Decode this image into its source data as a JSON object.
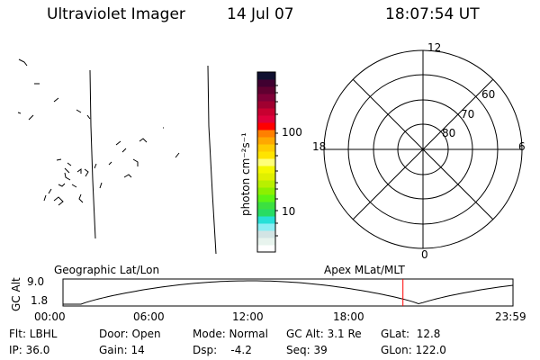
{
  "header": {
    "instrument": "Ultraviolet Imager",
    "date": "14 Jul 07",
    "time": "18:07:54 UT"
  },
  "colorbar": {
    "label": "photon cm⁻²s⁻¹",
    "ticks": [
      "100",
      "10"
    ],
    "colors": [
      "#ffffff",
      "#e8f4ee",
      "#d3e4e4",
      "#8ceef4",
      "#28e0d8",
      "#28dc64",
      "#3ce040",
      "#5cf414",
      "#8cf000",
      "#b8f000",
      "#e0f000",
      "#f4f800",
      "#ffff78",
      "#ffe400",
      "#ffcc00",
      "#ffa800",
      "#ff8000",
      "#ff0000",
      "#e0003c",
      "#c80030",
      "#a00030",
      "#800038",
      "#600030",
      "#400030",
      "#101030"
    ]
  },
  "polar": {
    "mlt_labels": {
      "top": "12",
      "left": "18",
      "right": "6",
      "bottom": "0"
    },
    "lat_labels": [
      "60",
      "70",
      "80"
    ]
  },
  "timeline": {
    "left_label": "Geographic Lat/Lon",
    "right_label": "Apex MLat/MLT",
    "ylabel": "GC Alt",
    "ymax": "9.0",
    "ymin": "1.8",
    "time_ticks": [
      "00:00",
      "06:00",
      "12:00",
      "18:00",
      "23:59"
    ],
    "current_time_hours": 18.13,
    "marker_color": "#ff0000"
  },
  "status": {
    "row1": [
      "Flt: LBHL",
      "Door: Open",
      "Mode: Normal",
      "GC Alt: 3.1 Re",
      "GLat:  12.8"
    ],
    "row2": [
      "IP: 36.0",
      "Gain: 14",
      "Dsp:    -4.2",
      "Seq: 39",
      "GLon: 122.0"
    ]
  }
}
